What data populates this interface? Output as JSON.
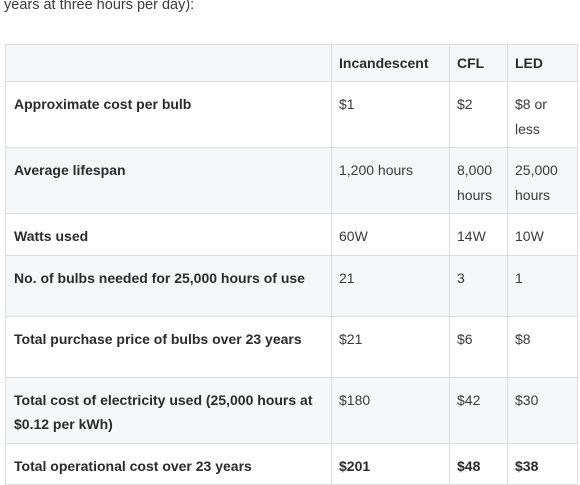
{
  "intro_text": "years at three hours per day):",
  "table": {
    "corner": "",
    "headers": [
      "Incandescent",
      "CFL",
      "LED"
    ],
    "rows": [
      {
        "label": "Approximate cost per bulb",
        "values": [
          "$1",
          "$2",
          "$8 or less"
        ]
      },
      {
        "label": "Average lifespan",
        "values": [
          "1,200 hours",
          "8,000 hours",
          "25,000 hours"
        ]
      },
      {
        "label": "Watts used",
        "values": [
          "60W",
          "14W",
          "10W"
        ]
      },
      {
        "label": "No. of bulbs needed for 25,000 hours of use",
        "values": [
          "21",
          "3",
          "1"
        ]
      },
      {
        "label": "Total purchase price of bulbs over 23 years",
        "values": [
          "$21",
          "$6",
          "$8"
        ]
      },
      {
        "label": "Total cost of electricity used (25,000 hours at $0.12 per kWh)",
        "values": [
          "$180",
          "$42",
          "$30"
        ]
      },
      {
        "label": "Total operational cost over 23 years",
        "values": [
          "$201",
          "$48",
          "$38"
        ]
      }
    ]
  }
}
